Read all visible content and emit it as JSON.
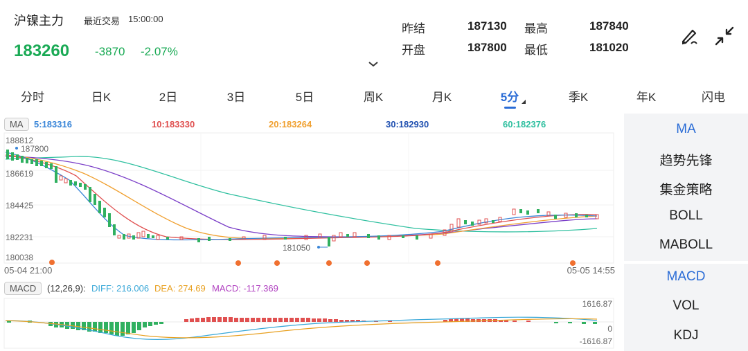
{
  "header": {
    "symbol_name": "沪镍主力",
    "last_trade_label": "最近交易",
    "last_trade_time": "15:00:00",
    "price": "183260",
    "change": "-3870",
    "change_pct": "-2.07%",
    "stats": {
      "prev_settle_label": "昨结",
      "prev_settle": "187130",
      "high_label": "最高",
      "high": "187840",
      "open_label": "开盘",
      "open": "187800",
      "low_label": "最低",
      "low": "181020"
    },
    "icons": [
      "draw-icon",
      "collapse-arrows-icon",
      "chevron-down-icon"
    ]
  },
  "tabs": [
    "分时",
    "日K",
    "2日",
    "3日",
    "5日",
    "周K",
    "月K",
    "5分",
    "季K",
    "年K",
    "闪电"
  ],
  "active_tab": "5分",
  "ma": {
    "badge": "MA",
    "items": [
      {
        "label": "5:183316",
        "color": "#3a86d8"
      },
      {
        "label": "10:183330",
        "color": "#e05050"
      },
      {
        "label": "20:183264",
        "color": "#f0a030"
      },
      {
        "label": "30:182930",
        "color": "#2050b0"
      },
      {
        "label": "60:182376",
        "color": "#30c0a0"
      }
    ]
  },
  "chart": {
    "y_labels": [
      "188812",
      "186619",
      "184425",
      "182231",
      "180038"
    ],
    "marker_high": "187800",
    "marker_low": "181050",
    "x_start": "05-04 21:00",
    "x_end": "05-05 14:55"
  },
  "macd": {
    "badge": "MACD",
    "params": "(12,26,9):",
    "diff": "DIFF: 216.006",
    "dea": "DEA: 274.69",
    "macd": "MACD: -117.369",
    "y_top": "1616.87",
    "y_mid": "0",
    "y_bottom": "-1616.87",
    "colors": {
      "diff": "#3aa8d8",
      "dea": "#e8a020",
      "macd": "#b040c0",
      "up": "#e05050",
      "down": "#30b060"
    }
  },
  "side_panel": {
    "top_items": [
      "MA",
      "趋势先锋",
      "集金策略",
      "BOLL",
      "MABOLL"
    ],
    "bottom_items": [
      "MACD",
      "VOL",
      "KDJ"
    ],
    "active_top": "MA",
    "active_bottom": "MACD"
  }
}
